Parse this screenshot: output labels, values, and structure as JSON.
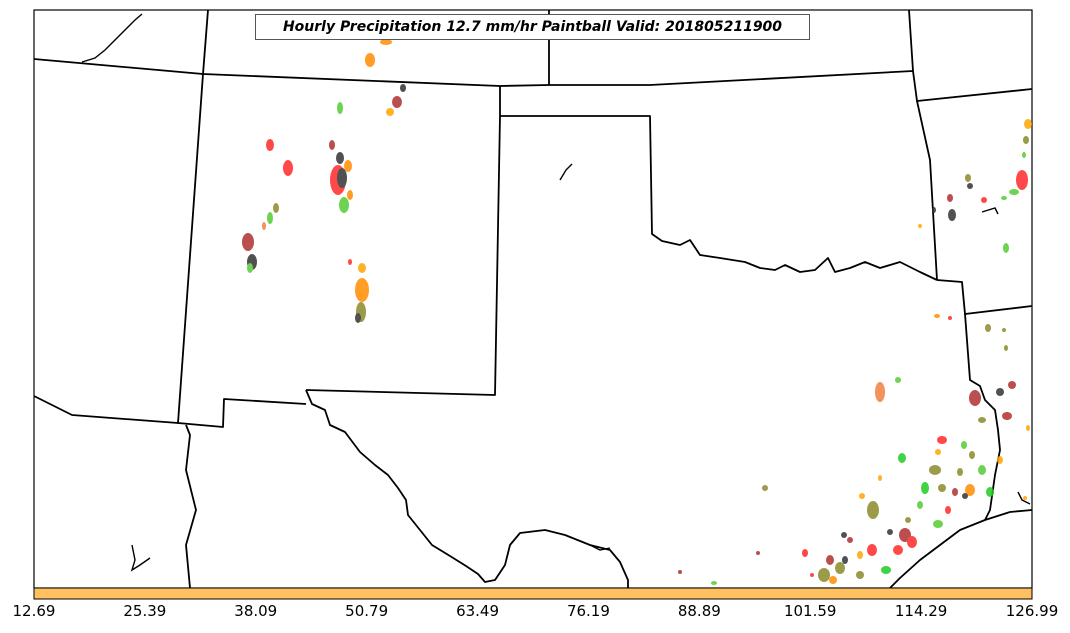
{
  "map": {
    "title": "Hourly Precipitation 12.7 mm/hr Paintball Valid: 201805211900",
    "region_states": [
      "Arizona",
      "New Mexico",
      "Colorado",
      "Kansas",
      "Oklahoma",
      "Texas",
      "Arkansas",
      "Louisiana"
    ],
    "colors": {
      "border": "#000000",
      "colorbar": "#ffc060",
      "cells": [
        "#ff2a2a",
        "#ff8c00",
        "#ffa500",
        "#55cc33",
        "#22cc22",
        "#8a8a2a",
        "#333333",
        "#b03030",
        "#f08040"
      ]
    }
  },
  "colorbar": {
    "ticks": [
      "12.69",
      "25.39",
      "38.09",
      "50.79",
      "63.49",
      "76.19",
      "88.89",
      "101.59",
      "114.29",
      "126.99"
    ]
  }
}
